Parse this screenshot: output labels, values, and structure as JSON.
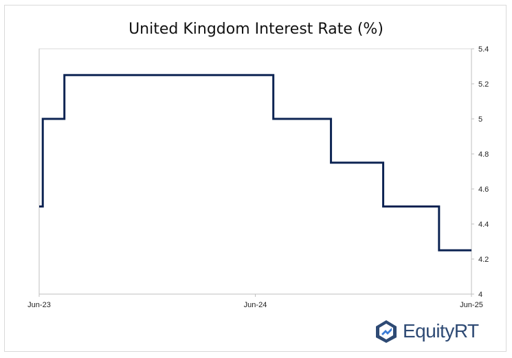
{
  "chart_data": {
    "type": "line",
    "title": "United Kingdom Interest Rate (%)",
    "xlabel": "",
    "ylabel": "",
    "x_tick_labels": [
      "Jun-23",
      "Jun-24",
      "Jun-25"
    ],
    "y_tick_labels": [
      "4",
      "4.2",
      "4.4",
      "4.6",
      "4.8",
      "5",
      "5.2",
      "5.4"
    ],
    "ylim": [
      4,
      5.4
    ],
    "xlim_months": [
      0,
      24
    ],
    "series": [
      {
        "name": "Interest Rate",
        "color": "#0d2453",
        "step": true,
        "x_months": [
          0,
          0.2,
          1.4,
          13.0,
          16.2,
          19.1,
          22.2,
          24
        ],
        "values": [
          4.5,
          5.0,
          5.25,
          5.0,
          4.75,
          4.5,
          4.25,
          4.25
        ]
      }
    ],
    "grid": false,
    "y_axis_side": "right"
  },
  "brand": {
    "name": "EquityRT",
    "color": "#2e4a74",
    "icon": "equityrt-logo-icon"
  }
}
